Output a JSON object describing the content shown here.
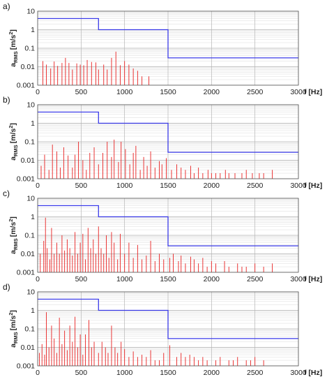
{
  "colors": {
    "limit": "#3a3ae8",
    "spectrum": "#e82020",
    "grid_major": "#b5b5b5",
    "grid_minor": "#e2e2e2",
    "frame": "#555555"
  },
  "x_unit_label": "f [Hz]",
  "y_label": {
    "main": "a",
    "sub": "RMS",
    "unit": "[m/s",
    "sup": "2",
    "close": "]"
  },
  "x_ticks": [
    "0",
    "500",
    "1000",
    "1500",
    "2000",
    "2500",
    "3000"
  ],
  "y_ticks": [
    "10",
    "1",
    "0.1",
    "0.01",
    "0.001"
  ],
  "chart_data": [
    {
      "type": "line",
      "panel_label": "a)",
      "xlim": [
        0,
        3000
      ],
      "ylim": [
        0.001,
        10
      ],
      "y_scale": "log",
      "grid": true,
      "limit_steps": [
        [
          0,
          4
        ],
        [
          700,
          4
        ],
        [
          700,
          1
        ],
        [
          1500,
          1
        ],
        [
          1500,
          0.03
        ],
        [
          3000,
          0.03
        ]
      ],
      "spectrum": [
        [
          60,
          0.02
        ],
        [
          100,
          0.013
        ],
        [
          150,
          0.008
        ],
        [
          190,
          0.019
        ],
        [
          230,
          0.011
        ],
        [
          280,
          0.016
        ],
        [
          320,
          0.03
        ],
        [
          360,
          0.016
        ],
        [
          400,
          0.007
        ],
        [
          450,
          0.015
        ],
        [
          490,
          0.013
        ],
        [
          530,
          0.012
        ],
        [
          570,
          0.023
        ],
        [
          620,
          0.018
        ],
        [
          670,
          0.017
        ],
        [
          700,
          0.007
        ],
        [
          760,
          0.013
        ],
        [
          800,
          0.007
        ],
        [
          850,
          0.03
        ],
        [
          900,
          0.065
        ],
        [
          950,
          0.012
        ],
        [
          1000,
          0.02
        ],
        [
          1050,
          0.013
        ],
        [
          1100,
          0.008
        ],
        [
          1150,
          0.006
        ],
        [
          1200,
          0.003
        ],
        [
          1280,
          0.003
        ]
      ]
    },
    {
      "type": "line",
      "panel_label": "b)",
      "xlim": [
        0,
        3000
      ],
      "ylim": [
        0.001,
        10
      ],
      "y_scale": "log",
      "grid": true,
      "limit_steps": [
        [
          0,
          4
        ],
        [
          700,
          4
        ],
        [
          700,
          1
        ],
        [
          1500,
          1
        ],
        [
          1500,
          0.027
        ],
        [
          3000,
          0.027
        ]
      ],
      "spectrum": [
        [
          40,
          0.005
        ],
        [
          80,
          0.02
        ],
        [
          130,
          0.003
        ],
        [
          170,
          0.07
        ],
        [
          220,
          0.03
        ],
        [
          260,
          0.004
        ],
        [
          300,
          0.05
        ],
        [
          350,
          0.018
        ],
        [
          400,
          0.004
        ],
        [
          430,
          0.02
        ],
        [
          470,
          0.1
        ],
        [
          520,
          0.01
        ],
        [
          560,
          0.003
        ],
        [
          600,
          0.025
        ],
        [
          650,
          0.05
        ],
        [
          700,
          0.006
        ],
        [
          750,
          0.025
        ],
        [
          800,
          0.1
        ],
        [
          850,
          0.015
        ],
        [
          880,
          0.13
        ],
        [
          930,
          0.008
        ],
        [
          960,
          0.1
        ],
        [
          1010,
          0.04
        ],
        [
          1060,
          0.006
        ],
        [
          1100,
          0.025
        ],
        [
          1130,
          0.06
        ],
        [
          1180,
          0.003
        ],
        [
          1220,
          0.015
        ],
        [
          1260,
          0.005
        ],
        [
          1300,
          0.03
        ],
        [
          1350,
          0.004
        ],
        [
          1400,
          0.009
        ],
        [
          1430,
          0.006
        ],
        [
          1480,
          0.013
        ],
        [
          1540,
          0.003
        ],
        [
          1600,
          0.006
        ],
        [
          1650,
          0.004
        ],
        [
          1700,
          0.003
        ],
        [
          1760,
          0.005
        ],
        [
          1800,
          0.002
        ],
        [
          1850,
          0.004
        ],
        [
          1900,
          0.002
        ],
        [
          1960,
          0.003
        ],
        [
          2000,
          0.002
        ],
        [
          2050,
          0.002
        ],
        [
          2100,
          0.002
        ],
        [
          2160,
          0.003
        ],
        [
          2200,
          0.002
        ],
        [
          2270,
          0.002
        ],
        [
          2350,
          0.002
        ],
        [
          2400,
          0.003
        ],
        [
          2470,
          0.002
        ],
        [
          2550,
          0.002
        ],
        [
          2600,
          0.002
        ],
        [
          2700,
          0.003
        ]
      ]
    },
    {
      "type": "line",
      "panel_label": "c)",
      "xlim": [
        0,
        3000
      ],
      "ylim": [
        0.001,
        10
      ],
      "y_scale": "log",
      "grid": true,
      "limit_steps": [
        [
          0,
          4
        ],
        [
          700,
          4
        ],
        [
          700,
          1
        ],
        [
          1500,
          1
        ],
        [
          1500,
          0.027
        ],
        [
          3000,
          0.027
        ]
      ],
      "spectrum": [
        [
          30,
          0.01
        ],
        [
          70,
          0.05
        ],
        [
          90,
          0.9
        ],
        [
          110,
          0.02
        ],
        [
          140,
          0.005
        ],
        [
          160,
          0.25
        ],
        [
          190,
          0.01
        ],
        [
          220,
          0.04
        ],
        [
          250,
          0.01
        ],
        [
          280,
          0.1
        ],
        [
          310,
          0.015
        ],
        [
          340,
          0.06
        ],
        [
          370,
          0.02
        ],
        [
          400,
          0.008
        ],
        [
          430,
          0.15
        ],
        [
          460,
          0.01
        ],
        [
          490,
          0.04
        ],
        [
          520,
          0.12
        ],
        [
          550,
          0.005
        ],
        [
          580,
          0.25
        ],
        [
          610,
          0.02
        ],
        [
          640,
          0.06
        ],
        [
          670,
          0.01
        ],
        [
          700,
          0.3
        ],
        [
          730,
          0.02
        ],
        [
          760,
          0.01
        ],
        [
          790,
          0.1
        ],
        [
          820,
          0.006
        ],
        [
          850,
          0.15
        ],
        [
          880,
          0.04
        ],
        [
          920,
          0.005
        ],
        [
          950,
          0.12
        ],
        [
          1000,
          0.01
        ],
        [
          1050,
          0.04
        ],
        [
          1100,
          0.006
        ],
        [
          1150,
          0.03
        ],
        [
          1200,
          0.005
        ],
        [
          1250,
          0.008
        ],
        [
          1300,
          0.05
        ],
        [
          1350,
          0.004
        ],
        [
          1400,
          0.01
        ],
        [
          1450,
          0.005
        ],
        [
          1520,
          0.006
        ],
        [
          1560,
          0.01
        ],
        [
          1620,
          0.004
        ],
        [
          1650,
          0.008
        ],
        [
          1700,
          0.003
        ],
        [
          1760,
          0.007
        ],
        [
          1800,
          0.005
        ],
        [
          1850,
          0.003
        ],
        [
          1900,
          0.006
        ],
        [
          1950,
          0.002
        ],
        [
          2000,
          0.004
        ],
        [
          2050,
          0.003
        ],
        [
          2150,
          0.004
        ],
        [
          2200,
          0.002
        ],
        [
          2300,
          0.003
        ],
        [
          2350,
          0.002
        ],
        [
          2400,
          0.002
        ],
        [
          2500,
          0.003
        ],
        [
          2600,
          0.002
        ],
        [
          2700,
          0.003
        ]
      ]
    },
    {
      "type": "line",
      "panel_label": "d)",
      "xlim": [
        0,
        3000
      ],
      "ylim": [
        0.001,
        10
      ],
      "y_scale": "log",
      "grid": true,
      "limit_steps": [
        [
          0,
          4
        ],
        [
          700,
          4
        ],
        [
          700,
          1
        ],
        [
          1500,
          1
        ],
        [
          1500,
          0.03
        ],
        [
          3000,
          0.03
        ]
      ],
      "spectrum": [
        [
          20,
          0.005
        ],
        [
          50,
          0.015
        ],
        [
          80,
          0.004
        ],
        [
          100,
          0.8
        ],
        [
          130,
          0.01
        ],
        [
          160,
          0.15
        ],
        [
          190,
          0.03
        ],
        [
          220,
          0.005
        ],
        [
          250,
          0.4
        ],
        [
          280,
          0.015
        ],
        [
          310,
          0.08
        ],
        [
          340,
          0.007
        ],
        [
          370,
          0.15
        ],
        [
          400,
          0.02
        ],
        [
          430,
          0.45
        ],
        [
          460,
          0.01
        ],
        [
          490,
          0.05
        ],
        [
          520,
          0.004
        ],
        [
          550,
          0.05
        ],
        [
          590,
          0.3
        ],
        [
          620,
          0.01
        ],
        [
          650,
          0.02
        ],
        [
          700,
          0.005
        ],
        [
          740,
          0.02
        ],
        [
          780,
          0.01
        ],
        [
          810,
          0.005
        ],
        [
          850,
          0.15
        ],
        [
          890,
          0.01
        ],
        [
          920,
          0.005
        ],
        [
          960,
          0.02
        ],
        [
          1000,
          0.008
        ],
        [
          1050,
          0.003
        ],
        [
          1100,
          0.006
        ],
        [
          1150,
          0.003
        ],
        [
          1200,
          0.004
        ],
        [
          1250,
          0.003
        ],
        [
          1300,
          0.007
        ],
        [
          1350,
          0.002
        ],
        [
          1400,
          0.002
        ],
        [
          1450,
          0.005
        ],
        [
          1520,
          0.013
        ],
        [
          1600,
          0.003
        ],
        [
          1650,
          0.005
        ],
        [
          1700,
          0.003
        ],
        [
          1750,
          0.004
        ],
        [
          1800,
          0.003
        ],
        [
          1850,
          0.002
        ],
        [
          1900,
          0.003
        ],
        [
          1950,
          0.002
        ],
        [
          2050,
          0.002
        ],
        [
          2100,
          0.003
        ],
        [
          2200,
          0.002
        ],
        [
          2250,
          0.002
        ],
        [
          2300,
          0.003
        ],
        [
          2400,
          0.002
        ],
        [
          2450,
          0.002
        ],
        [
          2500,
          0.003
        ],
        [
          2600,
          0.002
        ]
      ]
    }
  ]
}
